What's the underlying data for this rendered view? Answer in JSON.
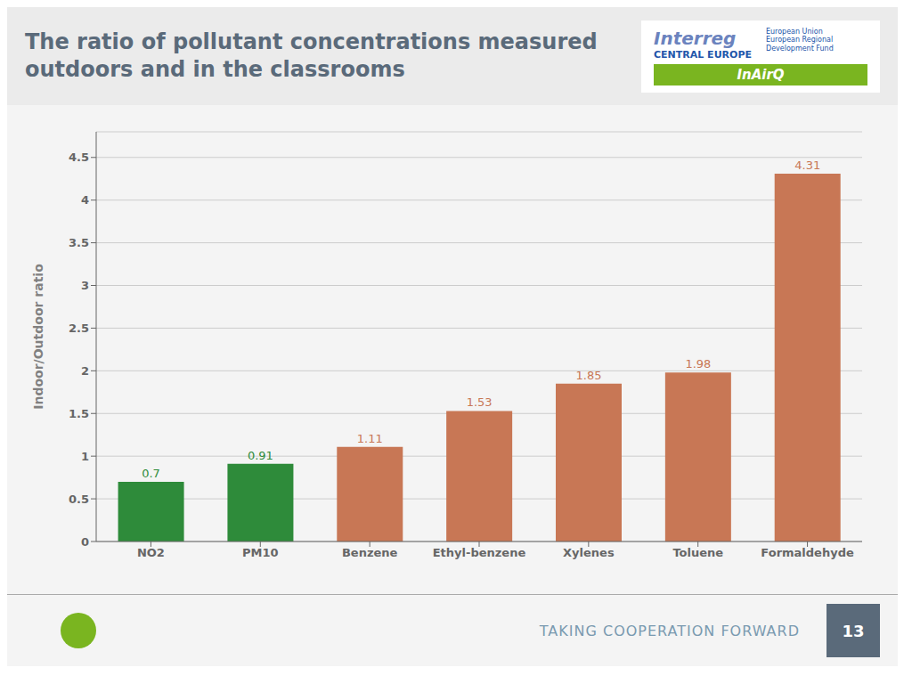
{
  "chart_data": {
    "type": "bar",
    "title": "The ratio of pollutant concentrations measured\noutdoors and in the classrooms",
    "categories": [
      "NO2",
      "PM10",
      "Benzene",
      "Ethyl-benzene",
      "Xylenes",
      "Toluene",
      "Formaldehyde"
    ],
    "values": [
      0.7,
      0.91,
      1.11,
      1.53,
      1.85,
      1.98,
      4.31
    ],
    "colors": [
      "#2e8b3a",
      "#2e8b3a",
      "#c87755",
      "#c87755",
      "#c87755",
      "#c87755",
      "#c87755"
    ],
    "y_label": "Indoor/Outdoor ratio",
    "ylim": [
      0,
      4.8
    ],
    "yticks": [
      0,
      0.5,
      1,
      1.5,
      2,
      2.5,
      3,
      3.5,
      4,
      4.5
    ],
    "grid": true,
    "data_labels": true,
    "annotations": [
      "Interreg",
      "CENTRAL EUROPE",
      "European Union\nEuropean Regional\nDevelopment Fund",
      "InAirQ",
      "TAKING COOPERATION FORWARD",
      "13"
    ]
  }
}
